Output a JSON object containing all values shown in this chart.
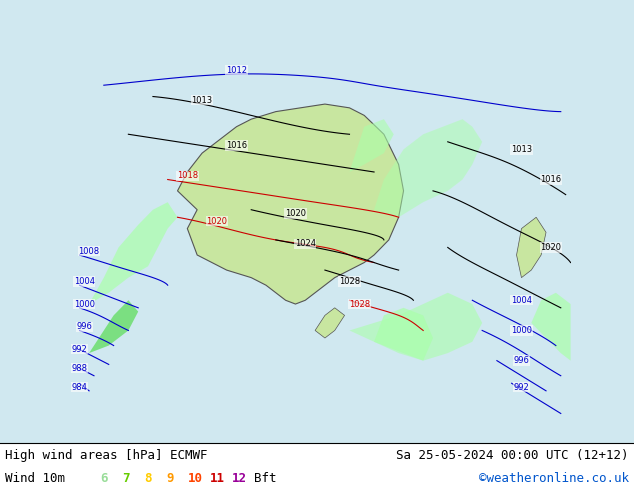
{
  "title_left": "High wind areas [hPa] ECMWF",
  "title_right": "Sa 25-05-2024 00:00 UTC (12+12)",
  "subtitle_left": "Wind 10m",
  "subtitle_right": "©weatheronline.co.uk",
  "bft_labels": [
    "6",
    "7",
    "8",
    "9",
    "10",
    "11",
    "12"
  ],
  "bft_colors": [
    "#99ff99",
    "#66cc00",
    "#ffcc00",
    "#ff9900",
    "#ff0000",
    "#cc0000",
    "#990099"
  ],
  "bft_label": "Bft",
  "bg_color": "#d0e8f0",
  "land_color": "#f0f0e0",
  "wind_colors": {
    "6": "#aaffaa",
    "7": "#66dd66",
    "8": "#ffee88",
    "9": "#ffaa00",
    "10": "#ff4444",
    "11": "#cc0000",
    "12": "#880088"
  },
  "isobar_color_black": "#000000",
  "isobar_color_blue": "#0000cc",
  "isobar_color_red": "#cc0000",
  "figsize": [
    6.34,
    4.9
  ],
  "dpi": 100,
  "title_fontsize": 9,
  "subtitle_fontsize": 9,
  "bft_fontsize": 9
}
